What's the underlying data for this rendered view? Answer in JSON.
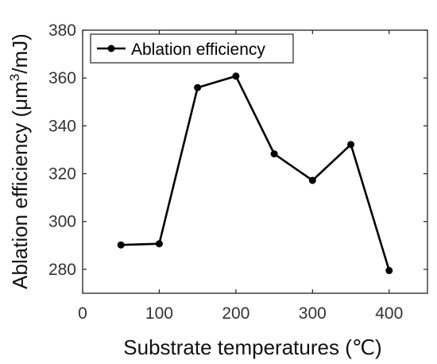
{
  "chart_data": {
    "type": "line",
    "title": "",
    "xlabel": "Substrate temperatures (℃)",
    "ylabel_main": "Ablation efficiency (μm",
    "ylabel_sup": "3",
    "ylabel_tail": "/mJ)",
    "xlim": [
      0,
      450
    ],
    "ylim": [
      270,
      380
    ],
    "xticks": [
      0,
      100,
      200,
      300,
      400
    ],
    "yticks": [
      280,
      300,
      320,
      340,
      360,
      380
    ],
    "grid": false,
    "legend_position": "top-left",
    "series": [
      {
        "name": "Ablation efficiency",
        "color": "#000000",
        "marker": "dot",
        "x": [
          50,
          100,
          150,
          200,
          250,
          300,
          350,
          400
        ],
        "y": [
          290.2,
          290.7,
          356,
          360.8,
          328.3,
          317.2,
          332.2,
          279.5
        ]
      }
    ]
  }
}
